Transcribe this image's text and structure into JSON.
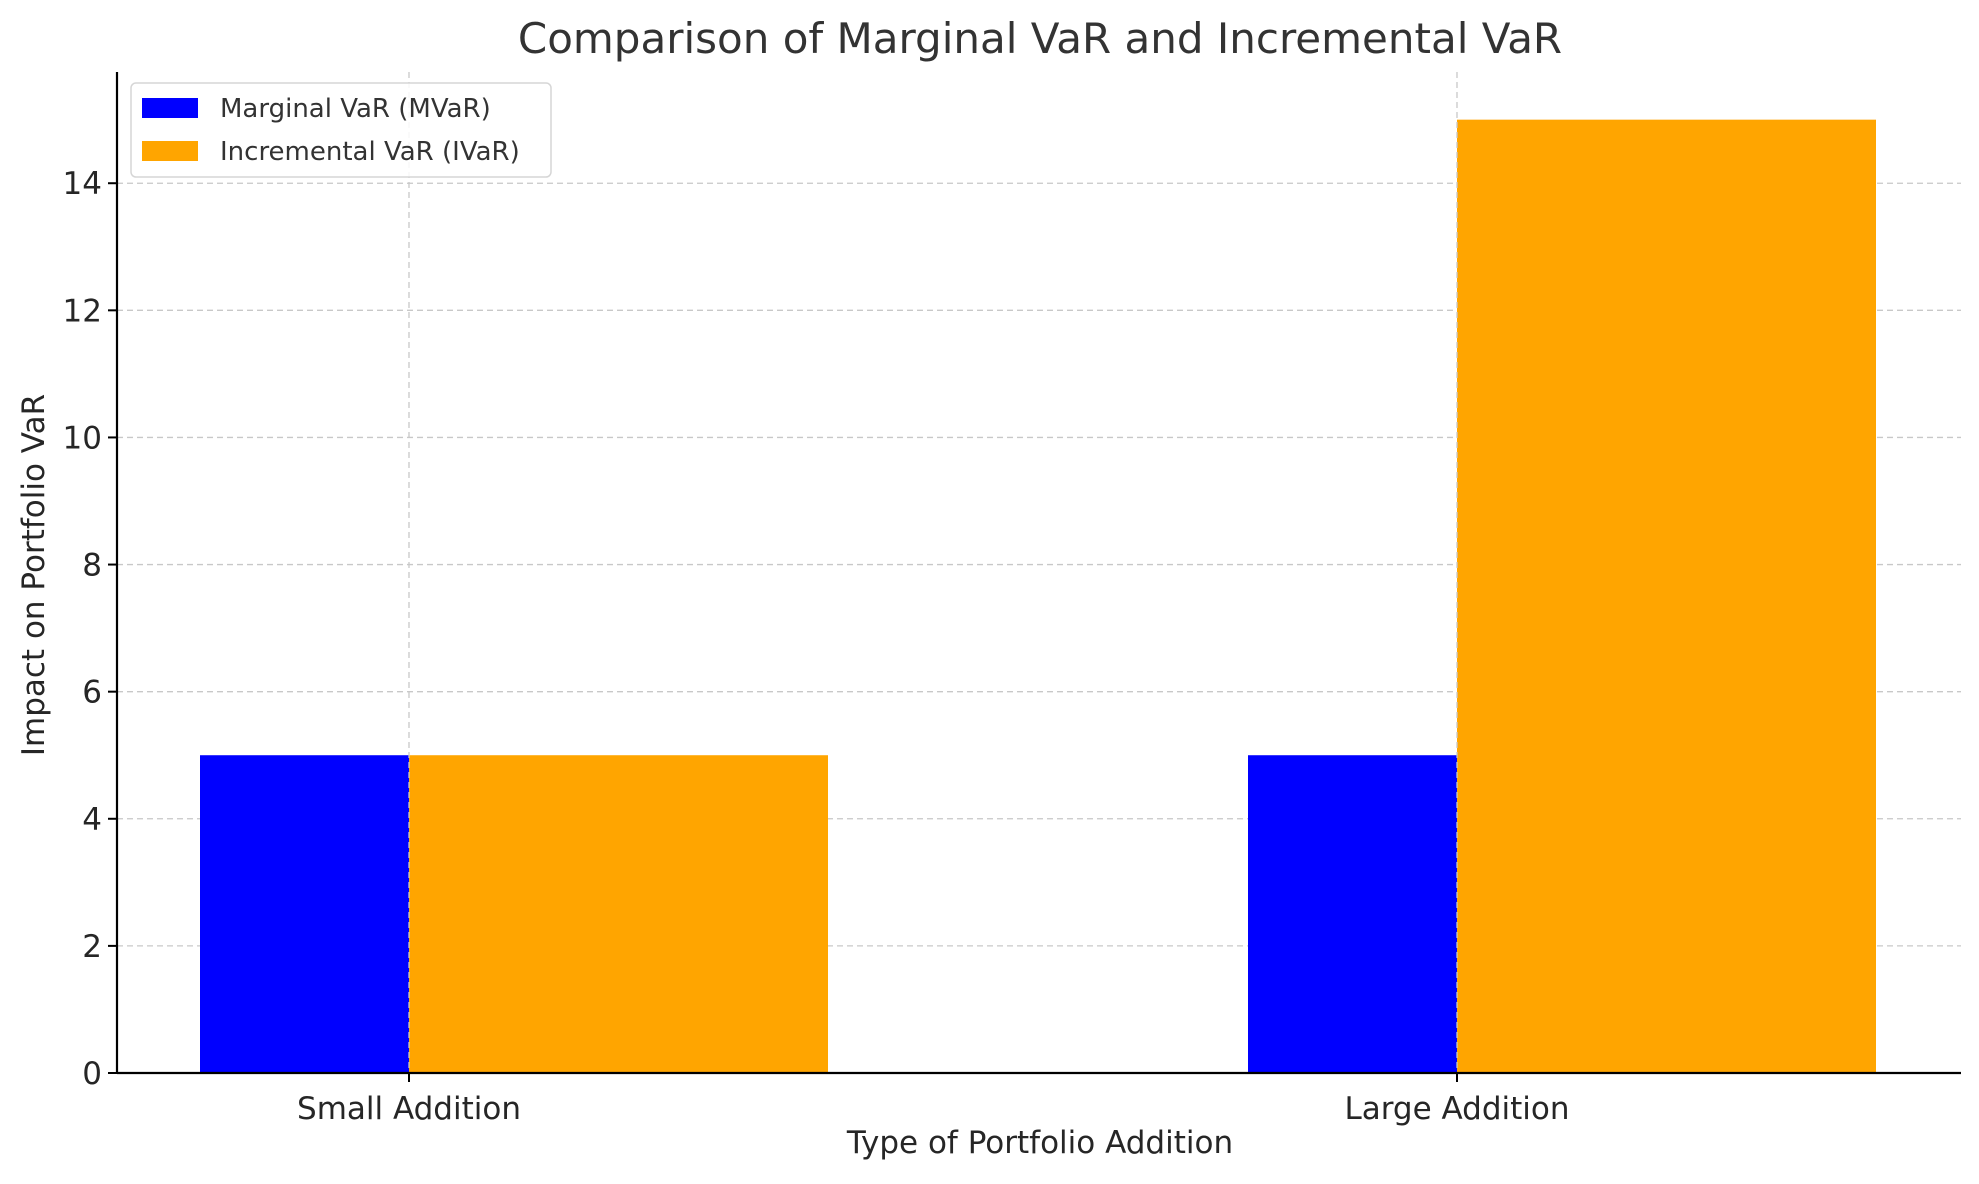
{
  "chart_data": {
    "type": "bar",
    "title": "Comparison of Marginal VaR and Incremental VaR",
    "xlabel": "Type of Portfolio Addition",
    "ylabel": "Impact on Portfolio VaR",
    "categories": [
      "Small Addition",
      "Large Addition"
    ],
    "series": [
      {
        "name": "Marginal VaR (MVaR)",
        "color": "#0000ff",
        "values": [
          5,
          5
        ]
      },
      {
        "name": "Incremental VaR (IVaR)",
        "color": "#ffa500",
        "values": [
          5,
          15
        ]
      }
    ],
    "ylim": [
      0,
      15.75
    ],
    "yticks": [
      0,
      2,
      4,
      6,
      8,
      10,
      12,
      14
    ],
    "grid": true,
    "legend_position": "upper-left"
  }
}
